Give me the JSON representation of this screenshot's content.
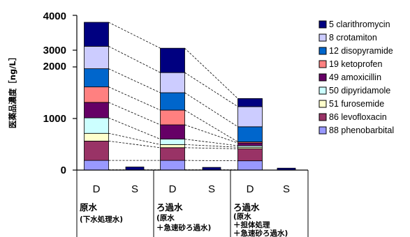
{
  "chart_data": {
    "type": "bar",
    "stacked": true,
    "ylabel": "医薬品濃度［ng/L］",
    "ylim": [
      0,
      4000
    ],
    "yticks": [
      "0",
      "1000",
      "2000",
      "3000",
      "4000"
    ],
    "categories": [
      "原水 D",
      "原水 S",
      "ろ過水(急速砂ろ過) D",
      "ろ過水(急速砂ろ過) S",
      "ろ過水(担体処理+急速砂ろ過) D",
      "ろ過水(担体処理+急速砂ろ過) S"
    ],
    "category_labels": [
      "D",
      "S",
      "D",
      "S",
      "D",
      "S"
    ],
    "groups": [
      {
        "title": "原水",
        "lines": [
          "(下水処理水)"
        ]
      },
      {
        "title": "ろ過水",
        "lines": [
          "(原水",
          "＋急速砂ろ過水)"
        ]
      },
      {
        "title": "ろ過水",
        "lines": [
          "(原水",
          "＋担体処理",
          "＋急速砂ろ過水)"
        ]
      }
    ],
    "series": [
      {
        "name": "88 phenobarbital",
        "color": "#9999ff",
        "values": [
          250,
          0,
          250,
          0,
          240,
          0
        ]
      },
      {
        "name": "86 levofloxacin",
        "color": "#993366",
        "values": [
          500,
          0,
          330,
          0,
          310,
          0
        ]
      },
      {
        "name": "51 furosemide",
        "color": "#ffffcc",
        "values": [
          200,
          0,
          80,
          0,
          40,
          0
        ]
      },
      {
        "name": "50 dipyridamole",
        "color": "#ccffff",
        "values": [
          400,
          0,
          140,
          0,
          40,
          0
        ]
      },
      {
        "name": "49 amoxicillin",
        "color": "#660066",
        "values": [
          400,
          0,
          370,
          0,
          70,
          0
        ]
      },
      {
        "name": "19 ketoprofen",
        "color": "#ff8080",
        "values": [
          400,
          0,
          380,
          0,
          30,
          0
        ]
      },
      {
        "name": "12 disopyramide",
        "color": "#0066cc",
        "values": [
          470,
          0,
          450,
          0,
          390,
          0
        ]
      },
      {
        "name": "8 crotamiton",
        "color": "#ccccff",
        "values": [
          580,
          0,
          520,
          0,
          520,
          0
        ]
      },
      {
        "name": "5 clarithromycin",
        "color": "#000080",
        "values": [
          620,
          0,
          630,
          0,
          210,
          0
        ]
      }
    ],
    "s_totals": [
      80,
      70,
      50
    ],
    "legend": [
      "5 clarithromycin",
      "8 crotamiton",
      "12 disopyramide",
      "19 ketoprofen",
      "49 amoxicillin",
      "50 dipyridamole",
      "51 furosemide",
      "86 levofloxacin",
      "88 phenobarbital"
    ],
    "legend_position": "right",
    "grid": false
  }
}
